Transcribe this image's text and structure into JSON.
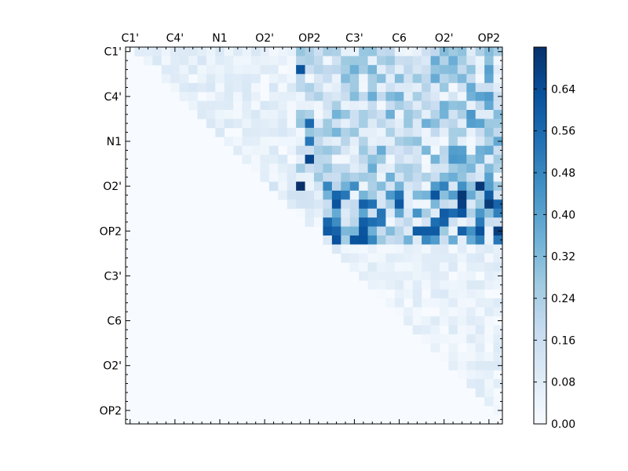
{
  "chart_data": {
    "type": "heatmap",
    "title": "",
    "xlabel": "",
    "ylabel": "",
    "x_tick_labels": [
      "C1'",
      "C4'",
      "N1",
      "O2'",
      "OP2",
      "C3'",
      "C6",
      "O2'",
      "OP2"
    ],
    "y_tick_labels": [
      "C1'",
      "C4'",
      "N1",
      "O2'",
      "OP2",
      "C3'",
      "C6",
      "O2'",
      "OP2"
    ],
    "colormap": "Blues",
    "colorbar": {
      "range": [
        0.0,
        0.72
      ],
      "ticks": [
        "0.00",
        "0.08",
        "0.16",
        "0.24",
        "0.32",
        "0.40",
        "0.48",
        "0.56",
        "0.64"
      ]
    },
    "matrix_size": 42,
    "structure": "upper-triangular; lower triangle ~0",
    "block_estimates": {
      "rows_0_14_near_diag_cols_le_18": 0.08,
      "rows_0_14_cols_19_22": 0.2,
      "rows_0_14_cols_23_35": 0.26,
      "rows_0_14_cols_36_41": 0.3,
      "rows_15_21_cols_22_35": 0.44,
      "rows_15_21_cols_36_41": 0.5,
      "rows_22_41": 0.07
    },
    "peaks": [
      {
        "row": 2,
        "col": 19,
        "value": 0.62
      },
      {
        "row": 8,
        "col": 20,
        "value": 0.56
      },
      {
        "row": 10,
        "col": 20,
        "value": 0.52
      },
      {
        "row": 12,
        "col": 20,
        "value": 0.66
      },
      {
        "row": 15,
        "col": 19,
        "value": 0.72
      },
      {
        "row": 15,
        "col": 39,
        "value": 0.7
      },
      {
        "row": 16,
        "col": 40,
        "value": 0.6
      },
      {
        "row": 20,
        "col": 23,
        "value": 0.58
      },
      {
        "row": 20,
        "col": 26,
        "value": 0.62
      },
      {
        "row": 20,
        "col": 32,
        "value": 0.6
      },
      {
        "row": 20,
        "col": 33,
        "value": 0.6
      },
      {
        "row": 20,
        "col": 34,
        "value": 0.6
      }
    ]
  }
}
